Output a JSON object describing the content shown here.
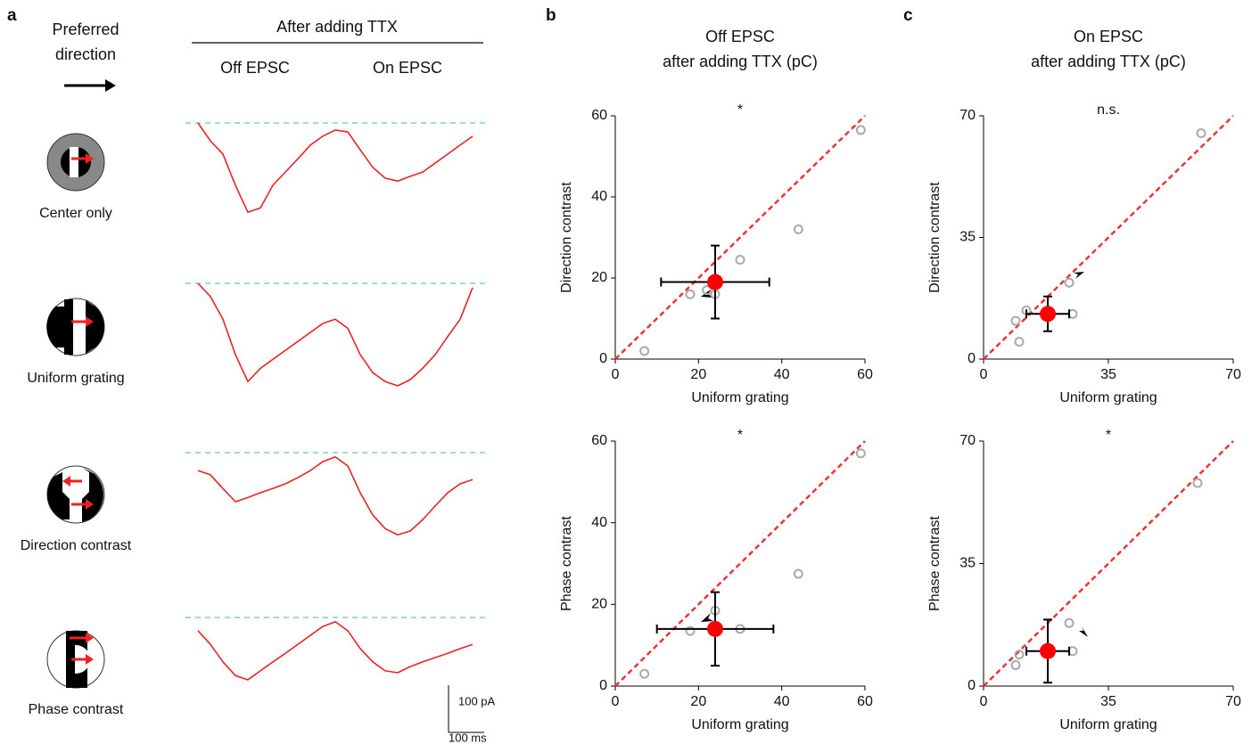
{
  "panel_labels": [
    "a",
    "b",
    "c"
  ],
  "panel_a": {
    "direction_label": [
      "Preferred",
      "direction"
    ],
    "title": "After adding TTX",
    "columns": [
      "Off EPSC",
      "On EPSC"
    ],
    "conditions": [
      "Center only",
      "Uniform grating",
      "Direction contrast",
      "Phase contrast"
    ],
    "trace_color": "#ee2222",
    "baseline_color": "#66ccaa",
    "traces": [
      [
        0,
        -38,
        -66,
        -132,
        -189,
        -180,
        -132,
        -104,
        -76,
        -47,
        -28,
        -15,
        -19,
        -57,
        -94,
        -117,
        -123,
        -113,
        -104,
        -85,
        -66,
        -47,
        -28
      ],
      [
        0,
        -28,
        -76,
        -151,
        -208,
        -180,
        -161,
        -142,
        -123,
        -104,
        -85,
        -76,
        -95,
        -151,
        -189,
        -208,
        -217,
        -204,
        -180,
        -151,
        -113,
        -76,
        -9
      ],
      [
        -38,
        -47,
        -76,
        -104,
        -95,
        -85,
        -76,
        -66,
        -53,
        -38,
        -19,
        -9,
        -28,
        -85,
        -132,
        -161,
        -174,
        -166,
        -142,
        -113,
        -85,
        -66,
        -57
      ],
      [
        -28,
        -57,
        -94,
        -123,
        -132,
        -113,
        -94,
        -76,
        -57,
        -38,
        -19,
        -9,
        -28,
        -66,
        -94,
        -113,
        -117,
        -104,
        -94,
        -85,
        -76,
        -66,
        -57
      ]
    ],
    "scale_bar": {
      "y": {
        "value": 100,
        "label": "100 pA"
      },
      "x": {
        "value": 100,
        "label": "100 ms"
      }
    }
  },
  "chart_data": [
    {
      "type": "scatter",
      "title": [
        "Off EPSC",
        "after adding TTX (pC)"
      ],
      "annotation": "*",
      "xlabel": "Uniform grating",
      "ylabel": "Direction contrast",
      "xlim": [
        0,
        60
      ],
      "ylim": [
        0,
        60
      ],
      "xticks": [
        0,
        20,
        40,
        60
      ],
      "yticks": [
        0,
        20,
        40,
        60
      ],
      "points": {
        "x": [
          7,
          18,
          22,
          24,
          30,
          44,
          59
        ],
        "y": [
          2,
          16,
          17,
          16,
          24.5,
          32,
          56.5
        ],
        "color": "#aaaaaa"
      },
      "mean": {
        "x": 24,
        "y": 19,
        "xerr": 13,
        "yerr": 9,
        "color": "#ff0000"
      },
      "diagonal_color": "#ee3333"
    },
    {
      "type": "scatter",
      "annotation": "*",
      "xlabel": "Uniform grating",
      "ylabel": "Phase contrast",
      "xlim": [
        0,
        60
      ],
      "ylim": [
        0,
        60
      ],
      "xticks": [
        0,
        20,
        40,
        60
      ],
      "yticks": [
        0,
        20,
        40,
        60
      ],
      "points": {
        "x": [
          7,
          18,
          24,
          30,
          44,
          59
        ],
        "y": [
          3,
          13.5,
          18.5,
          14,
          27.5,
          57
        ],
        "color": "#aaaaaa"
      },
      "mean": {
        "x": 24,
        "y": 14,
        "xerr": 14,
        "yerr": 9,
        "color": "#ff0000"
      },
      "diagonal_color": "#ee3333"
    },
    {
      "type": "scatter",
      "title": [
        "On EPSC",
        "after adding TTX (pC)"
      ],
      "annotation": "n.s.",
      "xlabel": "Uniform grating",
      "ylabel": "Direction contrast",
      "xlim": [
        0,
        70
      ],
      "ylim": [
        0,
        70
      ],
      "xticks": [
        0,
        35,
        70
      ],
      "yticks": [
        0,
        35,
        70
      ],
      "points": {
        "x": [
          9,
          10,
          12,
          24,
          25,
          61
        ],
        "y": [
          11,
          5,
          14,
          22,
          13,
          65
        ],
        "color": "#aaaaaa"
      },
      "mean": {
        "x": 18,
        "y": 13,
        "xerr": 6,
        "yerr": 5,
        "color": "#ff0000"
      },
      "diagonal_color": "#ee3333"
    },
    {
      "type": "scatter",
      "annotation": "*",
      "xlabel": "Uniform grating",
      "ylabel": "Phase contrast",
      "xlim": [
        0,
        70
      ],
      "ylim": [
        0,
        70
      ],
      "xticks": [
        0,
        35,
        70
      ],
      "yticks": [
        0,
        35,
        70
      ],
      "points": {
        "x": [
          9,
          10,
          24,
          25,
          60
        ],
        "y": [
          6,
          9,
          18,
          10,
          58
        ],
        "color": "#aaaaaa"
      },
      "mean": {
        "x": 18,
        "y": 10,
        "xerr": 6,
        "yerr": 9,
        "color": "#ff0000"
      },
      "diagonal_color": "#ee3333"
    }
  ]
}
